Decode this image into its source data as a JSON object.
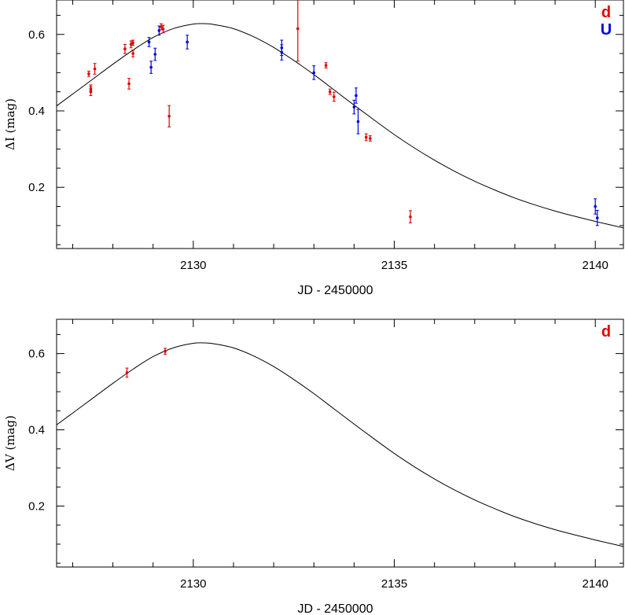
{
  "chart_data": [
    {
      "type": "scatter",
      "xlabel": "JD - 2450000",
      "ylabel": "ΔI (mag)",
      "xlim": [
        2126.6,
        2140.7
      ],
      "ylim": [
        0.04,
        0.69
      ],
      "xticks": [
        2130,
        2135,
        2140
      ],
      "yticks": [
        0.2,
        0.4,
        0.6
      ],
      "grid": false,
      "legend_position": "top-right",
      "model_curve": {
        "peak_x": 2130.3,
        "peak_y": 0.628,
        "x": [
          2126.6,
          2127,
          2127.5,
          2128,
          2128.5,
          2129,
          2129.5,
          2130,
          2130.3,
          2130.5,
          2131,
          2131.5,
          2132,
          2132.5,
          2133,
          2133.5,
          2134,
          2134.5,
          2135,
          2135.5,
          2136,
          2136.5,
          2137,
          2137.5,
          2138,
          2138.5,
          2139,
          2139.5,
          2140,
          2140.7
        ],
        "y": [
          0.413,
          0.444,
          0.483,
          0.522,
          0.559,
          0.592,
          0.615,
          0.627,
          0.628,
          0.626,
          0.615,
          0.594,
          0.566,
          0.532,
          0.495,
          0.455,
          0.415,
          0.376,
          0.338,
          0.303,
          0.271,
          0.242,
          0.216,
          0.193,
          0.172,
          0.154,
          0.138,
          0.124,
          0.111,
          0.094
        ]
      },
      "series": [
        {
          "name": "d",
          "color": "#e00000",
          "points": [
            {
              "x": 2127.4,
              "y": 0.497,
              "err": 0.007
            },
            {
              "x": 2127.45,
              "y": 0.458,
              "err": 0.01
            },
            {
              "x": 2127.45,
              "y": 0.452,
              "err": 0.012
            },
            {
              "x": 2127.55,
              "y": 0.51,
              "err": 0.014
            },
            {
              "x": 2128.3,
              "y": 0.562,
              "err": 0.012
            },
            {
              "x": 2128.4,
              "y": 0.471,
              "err": 0.014
            },
            {
              "x": 2128.45,
              "y": 0.574,
              "err": 0.009
            },
            {
              "x": 2128.5,
              "y": 0.578,
              "err": 0.007
            },
            {
              "x": 2128.5,
              "y": 0.55,
              "err": 0.009
            },
            {
              "x": 2129.2,
              "y": 0.62,
              "err": 0.008
            },
            {
              "x": 2129.25,
              "y": 0.614,
              "err": 0.01
            },
            {
              "x": 2129.4,
              "y": 0.386,
              "err": 0.028
            },
            {
              "x": 2132.6,
              "y": 0.615,
              "err": 0.085
            },
            {
              "x": 2133.3,
              "y": 0.519,
              "err": 0.007
            },
            {
              "x": 2133.4,
              "y": 0.45,
              "err": 0.007
            },
            {
              "x": 2133.5,
              "y": 0.437,
              "err": 0.012
            },
            {
              "x": 2134.3,
              "y": 0.331,
              "err": 0.009
            },
            {
              "x": 2134.4,
              "y": 0.328,
              "err": 0.007
            },
            {
              "x": 2135.4,
              "y": 0.123,
              "err": 0.016
            }
          ]
        },
        {
          "name": "U",
          "color": "#0000e0",
          "points": [
            {
              "x": 2128.9,
              "y": 0.58,
              "err": 0.012
            },
            {
              "x": 2128.95,
              "y": 0.514,
              "err": 0.016
            },
            {
              "x": 2129.05,
              "y": 0.548,
              "err": 0.016
            },
            {
              "x": 2129.15,
              "y": 0.61,
              "err": 0.012
            },
            {
              "x": 2129.85,
              "y": 0.58,
              "err": 0.018
            },
            {
              "x": 2132.2,
              "y": 0.553,
              "err": 0.02
            },
            {
              "x": 2132.2,
              "y": 0.565,
              "err": 0.02
            },
            {
              "x": 2133.0,
              "y": 0.5,
              "err": 0.018
            },
            {
              "x": 2134.0,
              "y": 0.41,
              "err": 0.018
            },
            {
              "x": 2134.05,
              "y": 0.44,
              "err": 0.02
            },
            {
              "x": 2134.1,
              "y": 0.372,
              "err": 0.032
            },
            {
              "x": 2140.0,
              "y": 0.15,
              "err": 0.02
            },
            {
              "x": 2140.05,
              "y": 0.12,
              "err": 0.02
            }
          ]
        }
      ]
    },
    {
      "type": "scatter",
      "xlabel": "JD - 2450000",
      "ylabel": "ΔV (mag)",
      "xlim": [
        2126.6,
        2140.7
      ],
      "ylim": [
        0.04,
        0.69
      ],
      "xticks": [
        2130,
        2135,
        2140
      ],
      "yticks": [
        0.2,
        0.4,
        0.6
      ],
      "grid": false,
      "legend_position": "top-right",
      "model_curve": {
        "peak_x": 2130.3,
        "peak_y": 0.628,
        "x": [
          2126.6,
          2127,
          2127.5,
          2128,
          2128.5,
          2129,
          2129.5,
          2130,
          2130.3,
          2130.5,
          2131,
          2131.5,
          2132,
          2132.5,
          2133,
          2133.5,
          2134,
          2134.5,
          2135,
          2135.5,
          2136,
          2136.5,
          2137,
          2137.5,
          2138,
          2138.5,
          2139,
          2139.5,
          2140,
          2140.7
        ],
        "y": [
          0.413,
          0.444,
          0.483,
          0.522,
          0.559,
          0.592,
          0.615,
          0.627,
          0.628,
          0.626,
          0.615,
          0.594,
          0.566,
          0.532,
          0.495,
          0.455,
          0.415,
          0.376,
          0.338,
          0.303,
          0.271,
          0.242,
          0.216,
          0.193,
          0.172,
          0.154,
          0.138,
          0.124,
          0.111,
          0.094
        ]
      },
      "series": [
        {
          "name": "d",
          "color": "#e00000",
          "points": [
            {
              "x": 2128.35,
              "y": 0.55,
              "err": 0.012
            },
            {
              "x": 2129.3,
              "y": 0.606,
              "err": 0.008
            }
          ]
        }
      ]
    }
  ]
}
